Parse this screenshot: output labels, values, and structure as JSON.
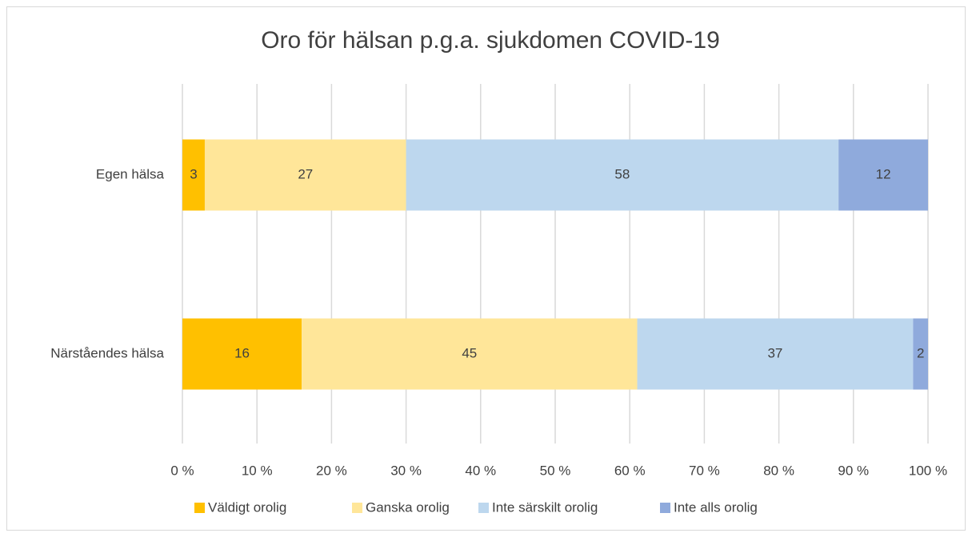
{
  "chart_data": {
    "type": "bar",
    "orientation": "horizontal",
    "stacked": true,
    "title": "Oro för hälsan p.g.a. sjukdomen COVID-19",
    "categories": [
      "Egen hälsa",
      "Närståendes hälsa"
    ],
    "series": [
      {
        "name": "Väldigt orolig",
        "color": "#ffc000",
        "values": [
          3,
          16
        ]
      },
      {
        "name": "Ganska orolig",
        "color": "#ffe699",
        "values": [
          27,
          45
        ]
      },
      {
        "name": "Inte särskilt orolig",
        "color": "#bdd7ee",
        "values": [
          58,
          37
        ]
      },
      {
        "name": "Inte alls orolig",
        "color": "#8faadc",
        "values": [
          12,
          2
        ]
      }
    ],
    "xlim": [
      0,
      100
    ],
    "xticks": [
      {
        "value": 0,
        "label": "0 %"
      },
      {
        "value": 10,
        "label": "10 %"
      },
      {
        "value": 20,
        "label": "20 %"
      },
      {
        "value": 30,
        "label": "30 %"
      },
      {
        "value": 40,
        "label": "40 %"
      },
      {
        "value": 50,
        "label": "50 %"
      },
      {
        "value": 60,
        "label": "60 %"
      },
      {
        "value": 70,
        "label": "70 %"
      },
      {
        "value": 80,
        "label": "80 %"
      },
      {
        "value": 90,
        "label": "90 %"
      },
      {
        "value": 100,
        "label": "100 %"
      }
    ],
    "grid": true,
    "legend": "bottom"
  }
}
